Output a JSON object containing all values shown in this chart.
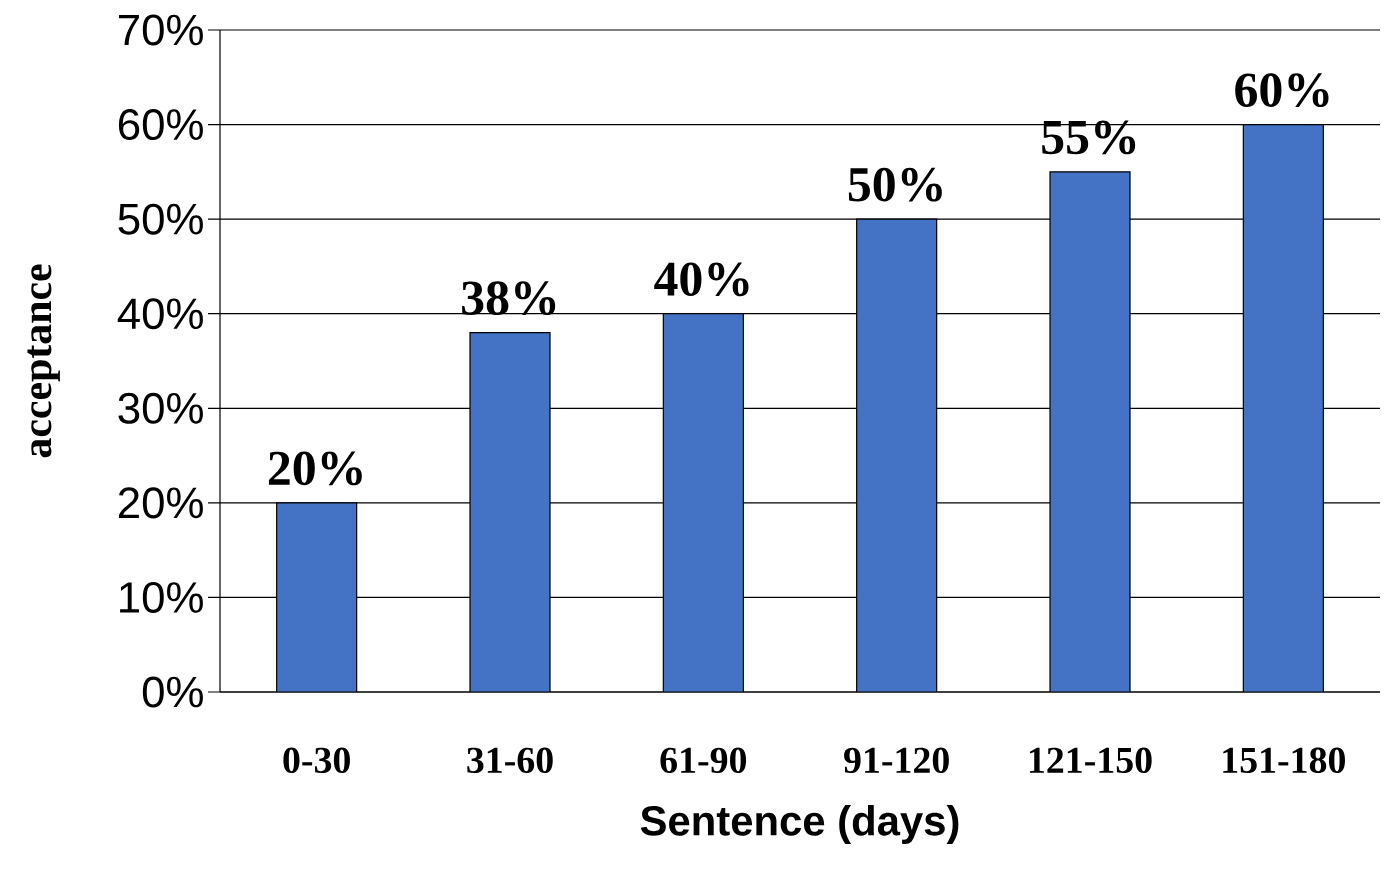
{
  "chart_data": {
    "type": "bar",
    "xlabel": "Sentence (days)",
    "ylabel": "acceptance",
    "categories": [
      "0-30",
      "31-60",
      "61-90",
      "91-120",
      "121-150",
      "151-180"
    ],
    "values": [
      20,
      38,
      40,
      50,
      55,
      60
    ],
    "value_labels": [
      "20%",
      "38%",
      "40%",
      "50%",
      "55%",
      "60%"
    ],
    "color": "#4472c4",
    "ylim": [
      0,
      70
    ],
    "yticks": [
      {
        "value": 0,
        "label": "0%"
      },
      {
        "value": 10,
        "label": "10%"
      },
      {
        "value": 20,
        "label": "20%"
      },
      {
        "value": 30,
        "label": "30%"
      },
      {
        "value": 40,
        "label": "40%"
      },
      {
        "value": 50,
        "label": "50%"
      },
      {
        "value": 60,
        "label": "60%"
      },
      {
        "value": 70,
        "label": "70%"
      }
    ],
    "grid": "y"
  }
}
